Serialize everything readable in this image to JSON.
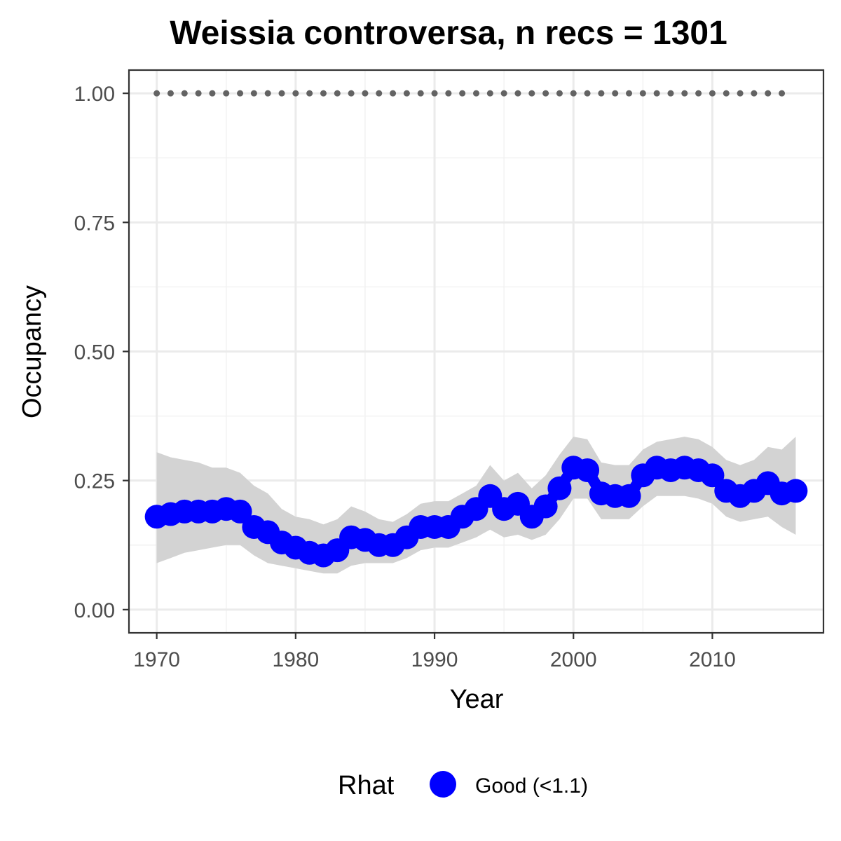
{
  "chart_data": {
    "type": "line",
    "title": "Weissia controversa, n recs = 1301",
    "xlabel": "Year",
    "ylabel": "Occupancy",
    "xlim": [
      1968,
      2018
    ],
    "ylim": [
      -0.045,
      1.045
    ],
    "x_ticks": [
      1970,
      1980,
      1990,
      2000,
      2010
    ],
    "x_tick_labels": [
      "1970",
      "1980",
      "1990",
      "2000",
      "2010"
    ],
    "y_ticks": [
      0,
      0.25,
      0.5,
      0.75,
      1.0
    ],
    "y_tick_labels": [
      "0.00",
      "0.25",
      "0.50",
      "0.75",
      "1.00"
    ],
    "grid": true,
    "legend_position": "bottom",
    "legend_title": "Rhat",
    "series": [
      {
        "name": "Good (<1.1)",
        "color": "#0000ff",
        "x": [
          1970,
          1971,
          1972,
          1973,
          1974,
          1975,
          1976,
          1977,
          1978,
          1979,
          1980,
          1981,
          1982,
          1983,
          1984,
          1985,
          1986,
          1987,
          1988,
          1989,
          1990,
          1991,
          1992,
          1993,
          1994,
          1995,
          1996,
          1997,
          1998,
          1999,
          2000,
          2001,
          2002,
          2003,
          2004,
          2005,
          2006,
          2007,
          2008,
          2009,
          2010,
          2011,
          2012,
          2013,
          2014,
          2015,
          2016
        ],
        "values": [
          0.18,
          0.185,
          0.19,
          0.19,
          0.19,
          0.195,
          0.19,
          0.16,
          0.15,
          0.13,
          0.12,
          0.11,
          0.105,
          0.115,
          0.14,
          0.135,
          0.125,
          0.125,
          0.14,
          0.16,
          0.16,
          0.16,
          0.18,
          0.195,
          0.22,
          0.195,
          0.205,
          0.18,
          0.2,
          0.235,
          0.275,
          0.27,
          0.225,
          0.22,
          0.22,
          0.26,
          0.275,
          0.27,
          0.275,
          0.27,
          0.26,
          0.23,
          0.22,
          0.23,
          0.245,
          0.225,
          0.23
        ],
        "lower": [
          0.09,
          0.1,
          0.11,
          0.115,
          0.12,
          0.125,
          0.125,
          0.105,
          0.09,
          0.085,
          0.08,
          0.075,
          0.07,
          0.07,
          0.085,
          0.09,
          0.09,
          0.09,
          0.1,
          0.115,
          0.12,
          0.12,
          0.13,
          0.14,
          0.155,
          0.14,
          0.145,
          0.135,
          0.145,
          0.175,
          0.215,
          0.215,
          0.175,
          0.175,
          0.175,
          0.2,
          0.22,
          0.22,
          0.22,
          0.215,
          0.205,
          0.18,
          0.17,
          0.175,
          0.18,
          0.16,
          0.145
        ],
        "upper": [
          0.305,
          0.295,
          0.29,
          0.285,
          0.275,
          0.275,
          0.265,
          0.24,
          0.225,
          0.195,
          0.18,
          0.175,
          0.165,
          0.175,
          0.2,
          0.19,
          0.175,
          0.17,
          0.185,
          0.205,
          0.21,
          0.21,
          0.225,
          0.24,
          0.28,
          0.25,
          0.265,
          0.235,
          0.26,
          0.3,
          0.335,
          0.33,
          0.285,
          0.28,
          0.28,
          0.31,
          0.325,
          0.33,
          0.335,
          0.33,
          0.315,
          0.29,
          0.28,
          0.29,
          0.315,
          0.31,
          0.335
        ]
      }
    ],
    "reference": {
      "y": 1.0,
      "x": [
        1970,
        1971,
        1972,
        1973,
        1974,
        1975,
        1976,
        1977,
        1978,
        1979,
        1980,
        1981,
        1982,
        1983,
        1984,
        1985,
        1986,
        1987,
        1988,
        1989,
        1990,
        1991,
        1992,
        1993,
        1994,
        1995,
        1996,
        1997,
        1998,
        1999,
        2000,
        2001,
        2002,
        2003,
        2004,
        2005,
        2006,
        2007,
        2008,
        2009,
        2010,
        2011,
        2012,
        2013,
        2014,
        2015
      ],
      "color": "#636363"
    },
    "ribbon_color": "#d3d3d3"
  }
}
